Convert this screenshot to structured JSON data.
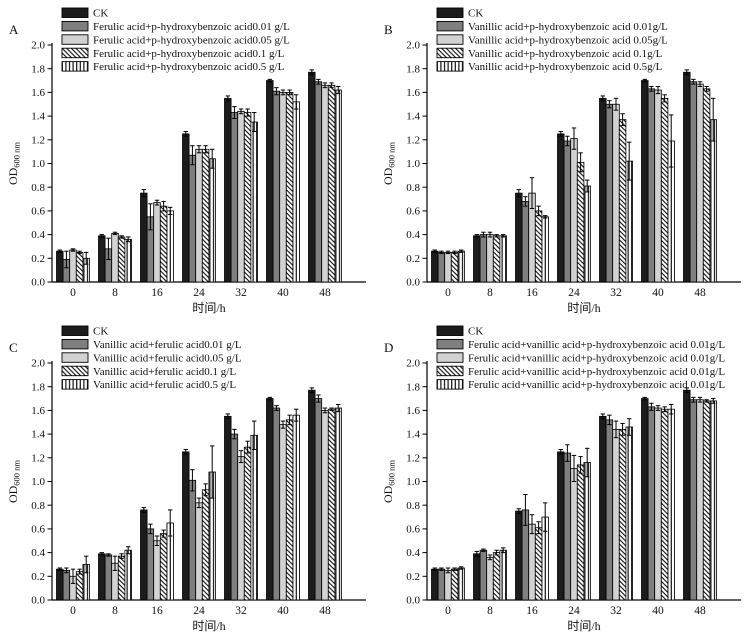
{
  "figure": {
    "background": "#ffffff"
  },
  "colors": {
    "black": "#1c1c1c",
    "dark_gray": "#7f7f7f",
    "light_gray": "#d2d2d2",
    "white": "#ffffff",
    "axis": "#000000",
    "text": "#111111"
  },
  "axis": {
    "xlabel": "时间/h",
    "ylabel_main": "OD",
    "ylabel_sub": "600 nm",
    "ylim": [
      0.0,
      2.0
    ],
    "ytick_step": 0.2,
    "grid": false,
    "legend_position": "top-left-inside"
  },
  "chart_data": [
    {
      "id": "A",
      "type": "bar",
      "categories": [
        "0",
        "8",
        "16",
        "24",
        "32",
        "40",
        "48"
      ],
      "series": [
        {
          "name": "CK",
          "pattern": "solid-black",
          "values": [
            0.26,
            0.39,
            0.75,
            1.25,
            1.55,
            1.7,
            1.77
          ],
          "errors": [
            0.01,
            0.01,
            0.03,
            0.02,
            0.02,
            0.01,
            0.02
          ]
        },
        {
          "name": "Ferulic acid+p-hydroxybenzoic acid0.01 g/L",
          "pattern": "solid-darkgray",
          "values": [
            0.19,
            0.28,
            0.55,
            1.07,
            1.43,
            1.61,
            1.69
          ],
          "errors": [
            0.07,
            0.09,
            0.11,
            0.08,
            0.05,
            0.03,
            0.02
          ]
        },
        {
          "name": "Ferulic acid+p-hydroxybenzoic acid0.05 g/L",
          "pattern": "solid-lightgray",
          "values": [
            0.27,
            0.41,
            0.67,
            1.12,
            1.44,
            1.6,
            1.66
          ],
          "errors": [
            0.01,
            0.01,
            0.02,
            0.03,
            0.02,
            0.02,
            0.02
          ]
        },
        {
          "name": "Ferulic acid+p-hydroxybenzoic acid0.1 g/L",
          "pattern": "hatch-diagonal",
          "values": [
            0.25,
            0.38,
            0.64,
            1.12,
            1.43,
            1.6,
            1.66
          ],
          "errors": [
            0.01,
            0.01,
            0.04,
            0.03,
            0.03,
            0.02,
            0.02
          ]
        },
        {
          "name": "Ferulic acid+p-hydroxybenzoic acid0.5 g/L",
          "pattern": "hatch-vertical",
          "values": [
            0.2,
            0.36,
            0.6,
            1.04,
            1.35,
            1.52,
            1.62
          ],
          "errors": [
            0.05,
            0.02,
            0.03,
            0.08,
            0.08,
            0.06,
            0.03
          ]
        }
      ]
    },
    {
      "id": "B",
      "type": "bar",
      "categories": [
        "0",
        "8",
        "16",
        "24",
        "32",
        "40",
        "48"
      ],
      "series": [
        {
          "name": "CK",
          "pattern": "solid-black",
          "values": [
            0.26,
            0.39,
            0.75,
            1.25,
            1.55,
            1.7,
            1.77
          ],
          "errors": [
            0.01,
            0.01,
            0.03,
            0.02,
            0.02,
            0.01,
            0.02
          ]
        },
        {
          "name": "Vanillic acid+p-hydroxybenzoic acid 0.01g/L",
          "pattern": "solid-darkgray",
          "values": [
            0.25,
            0.4,
            0.68,
            1.19,
            1.5,
            1.63,
            1.69
          ],
          "errors": [
            0.01,
            0.02,
            0.04,
            0.04,
            0.03,
            0.02,
            0.02
          ]
        },
        {
          "name": "Vanillic acid+p-hydroxybenzoic acid 0.05g/L",
          "pattern": "solid-lightgray",
          "values": [
            0.25,
            0.4,
            0.75,
            1.21,
            1.5,
            1.62,
            1.67
          ],
          "errors": [
            0.01,
            0.02,
            0.13,
            0.09,
            0.05,
            0.03,
            0.02
          ]
        },
        {
          "name": "Vanillic acid+p-hydroxybenzoic acid 0.1g/L",
          "pattern": "hatch-diagonal",
          "values": [
            0.25,
            0.39,
            0.6,
            1.01,
            1.37,
            1.55,
            1.63
          ],
          "errors": [
            0.01,
            0.01,
            0.04,
            0.08,
            0.05,
            0.03,
            0.02
          ]
        },
        {
          "name": "Vanillic acid+p-hydroxybenzoic acid 0.5g/L",
          "pattern": "hatch-vertical",
          "values": [
            0.26,
            0.39,
            0.55,
            0.81,
            1.02,
            1.19,
            1.37
          ],
          "errors": [
            0.01,
            0.01,
            0.01,
            0.05,
            0.16,
            0.22,
            0.18
          ]
        }
      ]
    },
    {
      "id": "C",
      "type": "bar",
      "categories": [
        "0",
        "8",
        "16",
        "24",
        "32",
        "40",
        "48"
      ],
      "series": [
        {
          "name": "CK",
          "pattern": "solid-black",
          "values": [
            0.26,
            0.39,
            0.76,
            1.25,
            1.55,
            1.7,
            1.77
          ],
          "errors": [
            0.01,
            0.01,
            0.02,
            0.02,
            0.02,
            0.01,
            0.02
          ]
        },
        {
          "name": "Vanillic acid+ferulic acid0.01 g/L",
          "pattern": "solid-darkgray",
          "values": [
            0.25,
            0.38,
            0.6,
            1.01,
            1.4,
            1.62,
            1.7
          ],
          "errors": [
            0.02,
            0.01,
            0.04,
            0.09,
            0.04,
            0.02,
            0.03
          ]
        },
        {
          "name": "Vanillic acid+ferulic acid0.05 g/L",
          "pattern": "solid-lightgray",
          "values": [
            0.2,
            0.31,
            0.5,
            0.82,
            1.21,
            1.48,
            1.6
          ],
          "errors": [
            0.06,
            0.06,
            0.04,
            0.04,
            0.05,
            0.03,
            0.02
          ]
        },
        {
          "name": "Vanillic acid+ferulic acid0.1 g/L",
          "pattern": "hatch-diagonal",
          "values": [
            0.24,
            0.37,
            0.56,
            0.93,
            1.29,
            1.52,
            1.61
          ],
          "errors": [
            0.02,
            0.02,
            0.03,
            0.05,
            0.05,
            0.04,
            0.01
          ]
        },
        {
          "name": "Vanillic acid+ferulic acid0.5 g/L",
          "pattern": "hatch-vertical",
          "values": [
            0.3,
            0.42,
            0.65,
            1.08,
            1.39,
            1.56,
            1.62
          ],
          "errors": [
            0.07,
            0.03,
            0.11,
            0.22,
            0.12,
            0.05,
            0.03
          ]
        }
      ]
    },
    {
      "id": "D",
      "type": "bar",
      "categories": [
        "0",
        "8",
        "16",
        "24",
        "32",
        "40",
        "48"
      ],
      "series": [
        {
          "name": "CK",
          "pattern": "solid-black",
          "values": [
            0.26,
            0.39,
            0.75,
            1.25,
            1.55,
            1.7,
            1.77
          ],
          "errors": [
            0.01,
            0.02,
            0.02,
            0.02,
            0.02,
            0.01,
            0.02
          ]
        },
        {
          "name": "Ferulic acid+vanillic acid+p-hydroxybenzoic acid 0.01g/L",
          "pattern": "solid-darkgray",
          "values": [
            0.26,
            0.42,
            0.76,
            1.24,
            1.52,
            1.63,
            1.69
          ],
          "errors": [
            0.01,
            0.01,
            0.13,
            0.07,
            0.04,
            0.03,
            0.02
          ]
        },
        {
          "name": "Ferulic acid+vanillic acid+p-hydroxybenzoic acid 0.01g/L",
          "pattern": "solid-lightgray",
          "values": [
            0.25,
            0.36,
            0.64,
            1.11,
            1.44,
            1.62,
            1.69
          ],
          "errors": [
            0.02,
            0.02,
            0.08,
            0.11,
            0.07,
            0.02,
            0.02
          ]
        },
        {
          "name": "Ferulic acid+vanillic acid+p-hydroxybenzoic acid 0.01g/L",
          "pattern": "hatch-diagonal",
          "values": [
            0.26,
            0.4,
            0.61,
            1.14,
            1.44,
            1.61,
            1.68
          ],
          "errors": [
            0.01,
            0.02,
            0.05,
            0.07,
            0.05,
            0.02,
            0.01
          ]
        },
        {
          "name": "Ferulic acid+vanillic acid+p-hydroxybenzoic acid 0.01g/L",
          "pattern": "hatch-vertical",
          "values": [
            0.27,
            0.42,
            0.7,
            1.16,
            1.46,
            1.61,
            1.68
          ],
          "errors": [
            0.01,
            0.02,
            0.12,
            0.12,
            0.07,
            0.04,
            0.02
          ]
        }
      ]
    }
  ]
}
